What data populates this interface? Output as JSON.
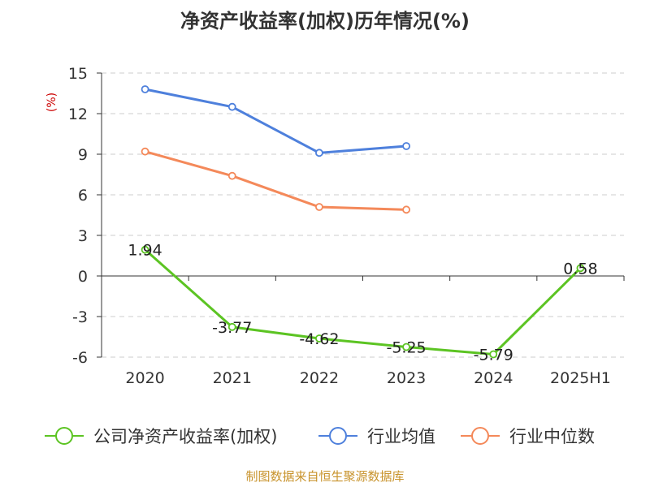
{
  "chart_data": {
    "type": "line",
    "title": "净资产收益率(加权)历年情况(%)",
    "ylabel": "(%)",
    "xlabel": "",
    "categories": [
      "2020",
      "2021",
      "2022",
      "2023",
      "2024",
      "2025H1"
    ],
    "ylim": [
      -6,
      15
    ],
    "yticks": [
      15,
      12,
      9,
      6,
      3,
      0,
      -3,
      -6
    ],
    "grid": "horizontal-dashed",
    "legend_position": "bottom",
    "series": [
      {
        "name": "公司净资产收益率(加权)",
        "color": "#5cc423",
        "values": [
          1.94,
          -3.77,
          -4.62,
          -5.25,
          -5.79,
          0.58
        ],
        "labels": [
          "1.94",
          "-3.77",
          "-4.62",
          "-5.25",
          "-5.79",
          "0.58"
        ]
      },
      {
        "name": "行业均值",
        "color": "#4e80dc",
        "values": [
          13.8,
          12.5,
          9.1,
          9.6,
          null,
          null
        ]
      },
      {
        "name": "行业中位数",
        "color": "#f4895a",
        "values": [
          9.2,
          7.4,
          5.1,
          4.9,
          null,
          null
        ]
      }
    ]
  },
  "source": "制图数据来自恒生聚源数据库"
}
